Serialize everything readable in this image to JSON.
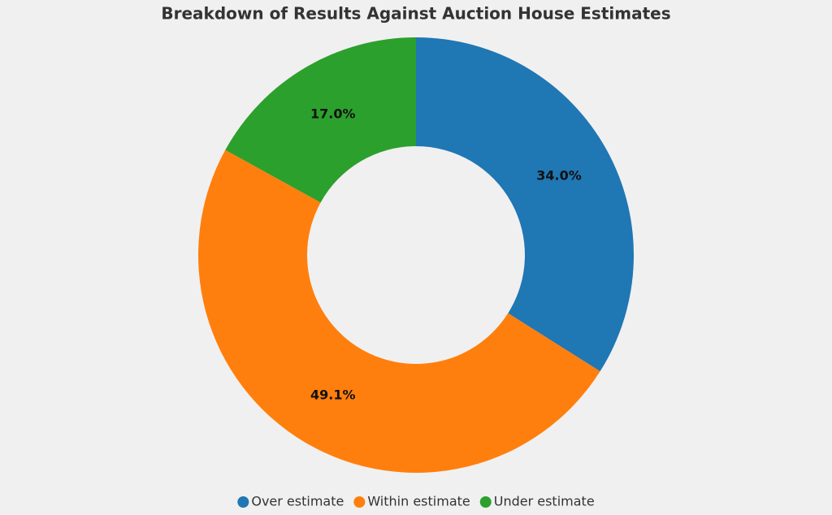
{
  "chart_data": {
    "type": "donut",
    "title": "Breakdown of Results Against Auction House Estimates",
    "categories": [
      "Over estimate",
      "Within estimate",
      "Under estimate"
    ],
    "values": [
      34.0,
      49.1,
      17.0
    ],
    "value_labels": [
      "34.0%",
      "49.1%",
      "17.0%"
    ],
    "colors": [
      "#1f77b4",
      "#ff7f0e",
      "#2ca02c"
    ],
    "legend": "bottom"
  }
}
